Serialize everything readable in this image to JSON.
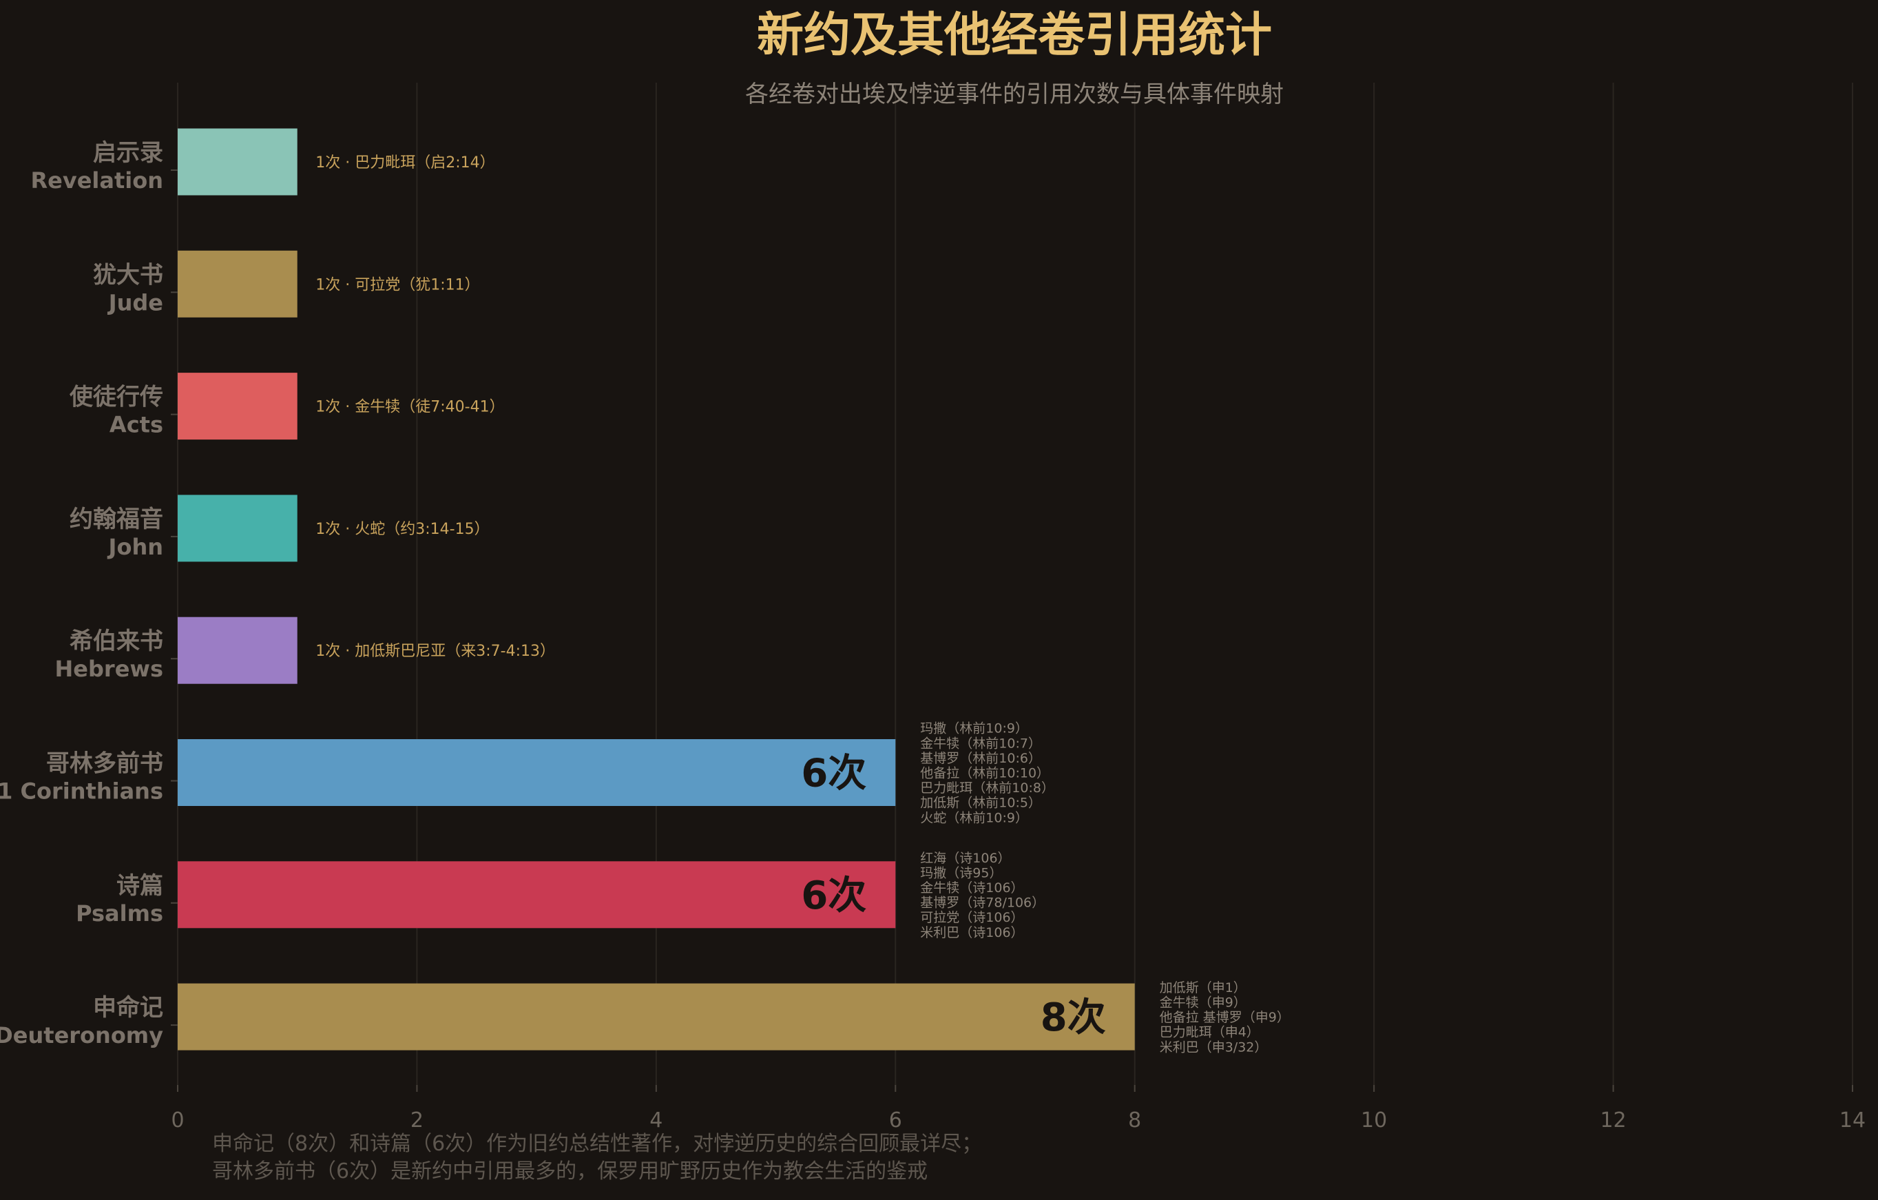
{
  "chart_data": {
    "type": "bar",
    "orientation": "horizontal",
    "title": "新约及其他经卷引用统计",
    "subtitle": "各经卷对出埃及悖逆事件的引用次数与具体事件映射",
    "xlim": [
      0,
      14
    ],
    "xticks": [
      "0",
      "2",
      "4",
      "6",
      "8",
      "10",
      "12",
      "14"
    ],
    "grid": true,
    "categories": [
      {
        "zh": "启示录",
        "en": "Revelation",
        "value": 1,
        "value_label": "1次",
        "color": "#8ac4b6",
        "annotation": "1次 · 巴力毗珥（启2:14）",
        "events": []
      },
      {
        "zh": "犹大书",
        "en": "Jude",
        "value": 1,
        "value_label": "1次",
        "color": "#a98d4f",
        "annotation": "1次 · 可拉党（犹1:11）",
        "events": []
      },
      {
        "zh": "使徒行传",
        "en": "Acts",
        "value": 1,
        "value_label": "1次",
        "color": "#de5e5e",
        "annotation": "1次 · 金牛犊（徒7:40-41）",
        "events": []
      },
      {
        "zh": "约翰福音",
        "en": "John",
        "value": 1,
        "value_label": "1次",
        "color": "#47b1aa",
        "annotation": "1次 · 火蛇（约3:14-15）",
        "events": []
      },
      {
        "zh": "希伯来书",
        "en": "Hebrews",
        "value": 1,
        "value_label": "1次",
        "color": "#9b7dc5",
        "annotation": "1次 · 加低斯巴尼亚（来3:7-4:13）",
        "events": []
      },
      {
        "zh": "哥林多前书",
        "en": "1 Corinthians",
        "value": 6,
        "value_label": "6次",
        "color": "#5c9ac4",
        "annotation": "",
        "events": [
          "玛撒（林前10:9）",
          "金牛犊（林前10:7）",
          "基博罗（林前10:6）",
          "他备拉（林前10:10）",
          "巴力毗珥（林前10:8）",
          "加低斯（林前10:5）",
          "火蛇（林前10:9）"
        ]
      },
      {
        "zh": "诗篇",
        "en": "Psalms",
        "value": 6,
        "value_label": "6次",
        "color": "#c93a52",
        "annotation": "",
        "events": [
          "红海（诗106）",
          "玛撒（诗95）",
          "金牛犊（诗106）",
          "基博罗（诗78/106）",
          "可拉党（诗106）",
          "米利巴（诗106）"
        ]
      },
      {
        "zh": "申命记",
        "en": "Deuteronomy",
        "value": 8,
        "value_label": "8次",
        "color": "#a98d4f",
        "annotation": "",
        "events": [
          "加低斯（申1）",
          "金牛犊（申9）",
          "他备拉  基博罗（申9）",
          "巴力毗珥（申4）",
          "米利巴（申3/32）"
        ]
      }
    ],
    "footnote": [
      "申命记（8次）和诗篇（6次）作为旧约总结性著作，对悖逆历史的综合回顾最详尽；",
      "哥林多前书（6次）是新约中引用最多的，保罗用旷野历史作为教会生活的鉴戒"
    ]
  },
  "colors": {
    "background": "#181411",
    "title": "#e9c272",
    "subtitle": "#8d8479",
    "axis_text": "#6e675e",
    "category_label": "#7c736a",
    "annotation": "#c9a35c",
    "events_text": "#8d8479",
    "inside_label": "#181411",
    "grid": "#2a2520"
  }
}
